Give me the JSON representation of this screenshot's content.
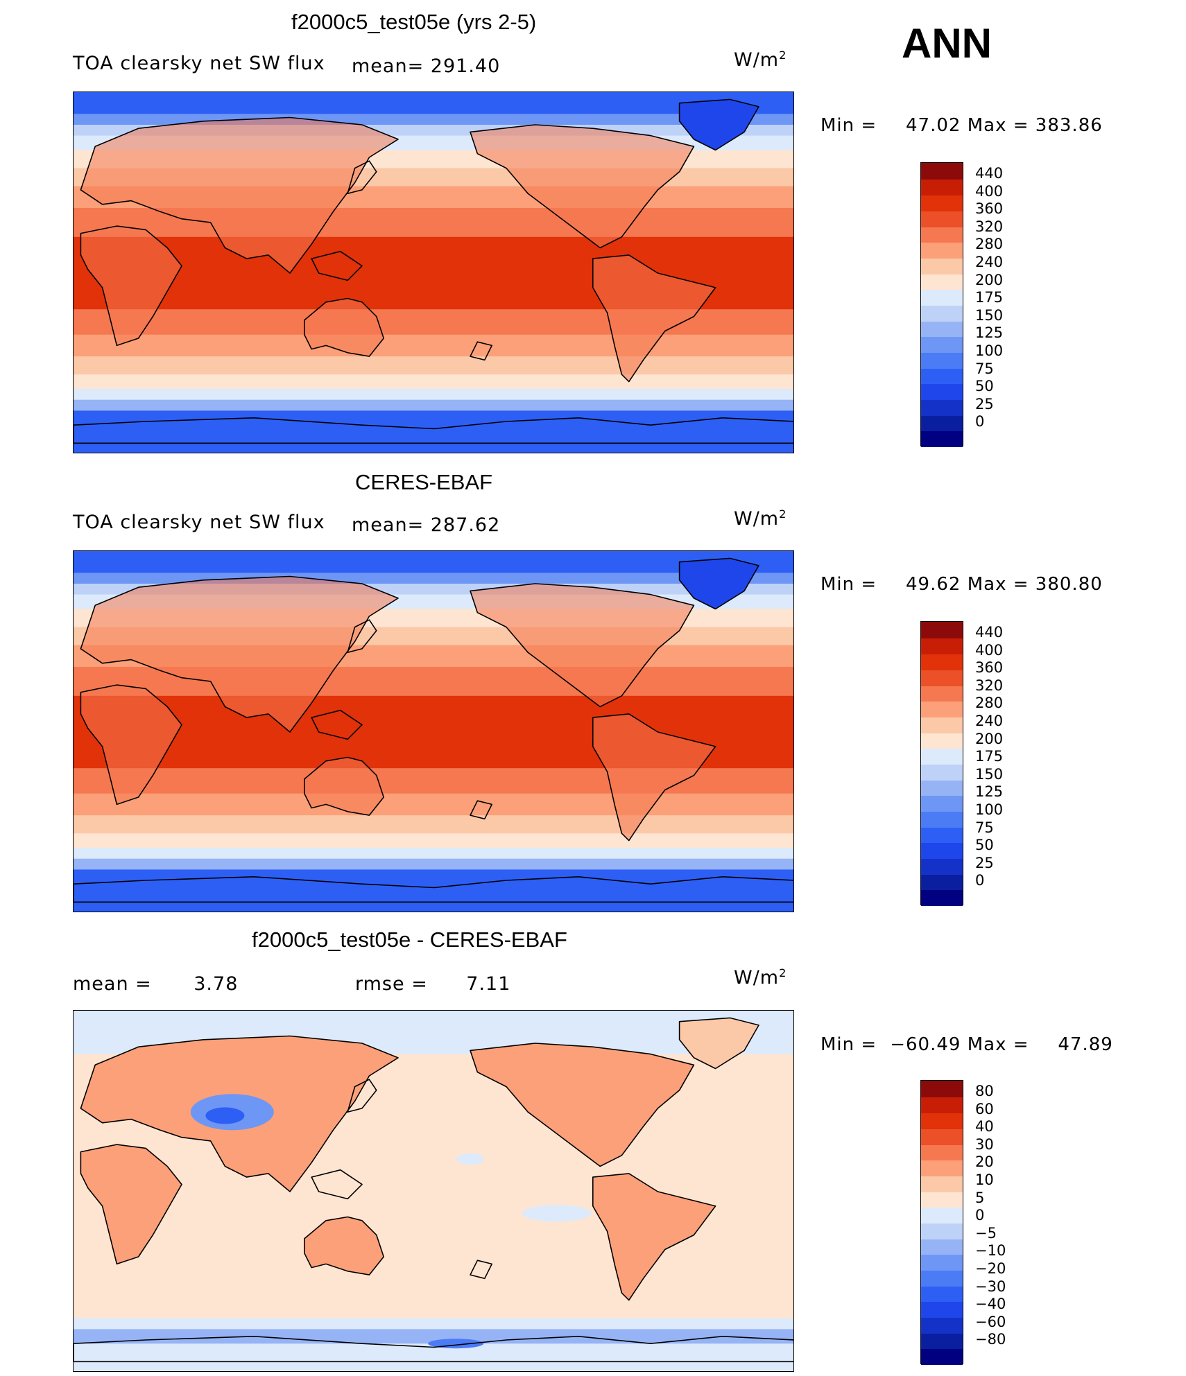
{
  "season": "ANN",
  "panels": [
    {
      "title": "f2000c5_test05e (yrs 2-5)",
      "left_label": "TOA clearsky net SW flux",
      "mean_label": "mean=",
      "mean_value": "291.40",
      "units_base": "W/m",
      "units_exp": "2",
      "min_label": "Min =",
      "min_value": "47.02",
      "max_label": "Max =",
      "max_value": "383.86",
      "colorbar_ticks": [
        "440",
        "400",
        "360",
        "320",
        "280",
        "240",
        "200",
        "175",
        "150",
        "125",
        "100",
        "75",
        "50",
        "25",
        "0"
      ]
    },
    {
      "title": "CERES-EBAF",
      "left_label": "TOA clearsky net SW flux",
      "mean_label": "mean=",
      "mean_value": "287.62",
      "units_base": "W/m",
      "units_exp": "2",
      "min_label": "Min =",
      "min_value": "49.62",
      "max_label": "Max =",
      "max_value": "380.80",
      "colorbar_ticks": [
        "440",
        "400",
        "360",
        "320",
        "280",
        "240",
        "200",
        "175",
        "150",
        "125",
        "100",
        "75",
        "50",
        "25",
        "0"
      ]
    },
    {
      "title": "f2000c5_test05e - CERES-EBAF",
      "mean_label": "mean =",
      "mean_value": "3.78",
      "rmse_label": "rmse =",
      "rmse_value": "7.11",
      "units_base": "W/m",
      "units_exp": "2",
      "min_label": "Min =",
      "min_value": "−60.49",
      "max_label": "Max =",
      "max_value": "47.89",
      "colorbar_ticks": [
        "80",
        "60",
        "40",
        "30",
        "20",
        "10",
        "5",
        "0",
        "−5",
        "−10",
        "−20",
        "−30",
        "−40",
        "−60",
        "−80"
      ]
    }
  ],
  "colors": {
    "abs_scale": [
      "#000080",
      "#0a1fa0",
      "#1432c8",
      "#1e46eb",
      "#2d5ff5",
      "#4b7cf5",
      "#6e96f5",
      "#96b4f5",
      "#bed2f8",
      "#dceafb",
      "#fde5d2",
      "#fbc8a8",
      "#fba078",
      "#f57850",
      "#eb5028",
      "#e1320a",
      "#c81e05",
      "#8c0a0a"
    ],
    "diff_scale": [
      "#000080",
      "#0a1fa0",
      "#1432c8",
      "#1e46eb",
      "#2d5ff5",
      "#4b7cf5",
      "#6e96f5",
      "#96b4f5",
      "#bed2f8",
      "#dceafb",
      "#fde5d2",
      "#fbc8a8",
      "#fba078",
      "#f57850",
      "#eb5028",
      "#e1320a",
      "#c81e05",
      "#8c0a0a"
    ]
  }
}
